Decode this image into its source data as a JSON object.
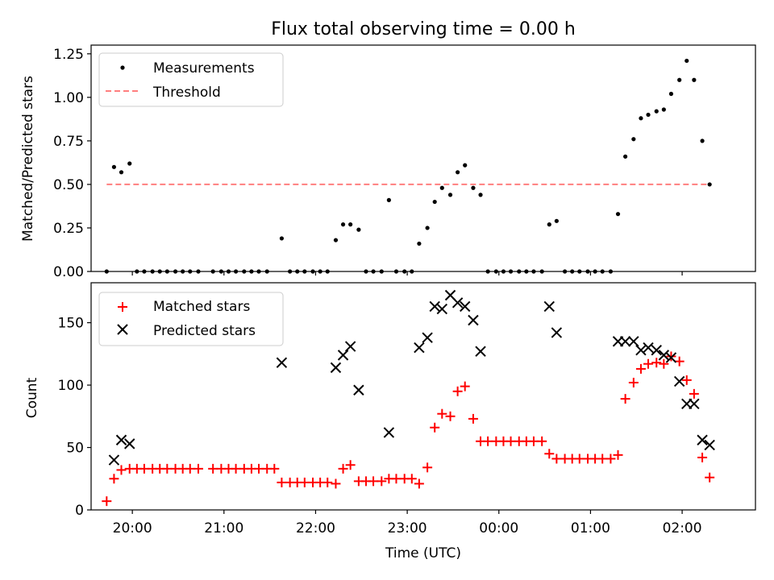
{
  "chart_data": [
    {
      "type": "scatter",
      "title": "Flux total observing time = 0.00 h",
      "xlabel": "",
      "ylabel": "Matched/Predicted stars",
      "ylim": [
        0,
        1.3
      ],
      "yticks": [
        0.0,
        0.25,
        0.5,
        0.75,
        1.0,
        1.25
      ],
      "ytick_labels": [
        "0.00",
        "0.25",
        "0.50",
        "0.75",
        "1.00",
        "1.25"
      ],
      "xlim_hours": [
        19.55,
        26.8
      ],
      "legend_position": "top-left",
      "series": [
        {
          "name": "Measurements",
          "color": "#000000",
          "marker": "dot",
          "points": [
            [
              19.72,
              0
            ],
            [
              19.8,
              0.6
            ],
            [
              19.88,
              0.57
            ],
            [
              19.97,
              0.62
            ],
            [
              20.05,
              0
            ],
            [
              20.13,
              0
            ],
            [
              20.22,
              0
            ],
            [
              20.3,
              0
            ],
            [
              20.38,
              0
            ],
            [
              20.47,
              0
            ],
            [
              20.55,
              0
            ],
            [
              20.63,
              0
            ],
            [
              20.72,
              0
            ],
            [
              20.88,
              0
            ],
            [
              20.97,
              0
            ],
            [
              21.05,
              0
            ],
            [
              21.13,
              0
            ],
            [
              21.22,
              0
            ],
            [
              21.3,
              0
            ],
            [
              21.38,
              0
            ],
            [
              21.47,
              0
            ],
            [
              21.63,
              0.19
            ],
            [
              21.72,
              0
            ],
            [
              21.8,
              0
            ],
            [
              21.88,
              0
            ],
            [
              21.97,
              0
            ],
            [
              22.05,
              0
            ],
            [
              22.13,
              0
            ],
            [
              22.22,
              0.18
            ],
            [
              22.3,
              0.27
            ],
            [
              22.38,
              0.27
            ],
            [
              22.47,
              0.24
            ],
            [
              22.55,
              0
            ],
            [
              22.63,
              0
            ],
            [
              22.72,
              0
            ],
            [
              22.8,
              0.41
            ],
            [
              22.88,
              0
            ],
            [
              22.97,
              0
            ],
            [
              23.05,
              0
            ],
            [
              23.13,
              0.16
            ],
            [
              23.22,
              0.25
            ],
            [
              23.3,
              0.4
            ],
            [
              23.38,
              0.48
            ],
            [
              23.47,
              0.44
            ],
            [
              23.55,
              0.57
            ],
            [
              23.63,
              0.61
            ],
            [
              23.72,
              0.48
            ],
            [
              23.8,
              0.44
            ],
            [
              23.88,
              0
            ],
            [
              23.97,
              0
            ],
            [
              24.05,
              0
            ],
            [
              24.13,
              0
            ],
            [
              24.22,
              0
            ],
            [
              24.3,
              0
            ],
            [
              24.38,
              0
            ],
            [
              24.47,
              0
            ],
            [
              24.55,
              0.27
            ],
            [
              24.63,
              0.29
            ],
            [
              24.72,
              0
            ],
            [
              24.8,
              0
            ],
            [
              24.88,
              0
            ],
            [
              24.97,
              0
            ],
            [
              25.05,
              0
            ],
            [
              25.13,
              0
            ],
            [
              25.22,
              0
            ],
            [
              25.3,
              0.33
            ],
            [
              25.38,
              0.66
            ],
            [
              25.47,
              0.76
            ],
            [
              25.55,
              0.88
            ],
            [
              25.63,
              0.9
            ],
            [
              25.72,
              0.92
            ],
            [
              25.8,
              0.93
            ],
            [
              25.88,
              1.02
            ],
            [
              25.97,
              1.1
            ],
            [
              26.05,
              1.21
            ],
            [
              26.13,
              1.1
            ],
            [
              26.22,
              0.75
            ],
            [
              26.3,
              0.5
            ]
          ]
        },
        {
          "name": "Threshold",
          "color": "#ff7f7f",
          "linestyle": "dashed",
          "x": [
            19.72,
            26.3
          ],
          "y": [
            0.5,
            0.5
          ]
        }
      ]
    },
    {
      "type": "scatter",
      "title": "",
      "xlabel": "Time (UTC)",
      "ylabel": "Count",
      "ylim": [
        0,
        182
      ],
      "yticks": [
        0,
        50,
        100,
        150
      ],
      "ytick_labels": [
        "0",
        "50",
        "100",
        "150"
      ],
      "xlim_hours": [
        19.55,
        26.8
      ],
      "xticks_hours": [
        20,
        21,
        22,
        23,
        24,
        25,
        26
      ],
      "xtick_labels": [
        "20:00",
        "21:00",
        "22:00",
        "23:00",
        "00:00",
        "01:00",
        "02:00"
      ],
      "legend_position": "top-left",
      "series": [
        {
          "name": "Matched stars",
          "color": "#ff0000",
          "marker": "plus",
          "points": [
            [
              19.72,
              7
            ],
            [
              19.8,
              25
            ],
            [
              19.88,
              32
            ],
            [
              19.97,
              33
            ],
            [
              20.05,
              33
            ],
            [
              20.13,
              33
            ],
            [
              20.22,
              33
            ],
            [
              20.3,
              33
            ],
            [
              20.38,
              33
            ],
            [
              20.47,
              33
            ],
            [
              20.55,
              33
            ],
            [
              20.63,
              33
            ],
            [
              20.72,
              33
            ],
            [
              20.88,
              33
            ],
            [
              20.97,
              33
            ],
            [
              21.05,
              33
            ],
            [
              21.13,
              33
            ],
            [
              21.22,
              33
            ],
            [
              21.3,
              33
            ],
            [
              21.38,
              33
            ],
            [
              21.47,
              33
            ],
            [
              21.55,
              33
            ],
            [
              21.63,
              22
            ],
            [
              21.72,
              22
            ],
            [
              21.8,
              22
            ],
            [
              21.88,
              22
            ],
            [
              21.97,
              22
            ],
            [
              22.05,
              22
            ],
            [
              22.13,
              22
            ],
            [
              22.22,
              21
            ],
            [
              22.3,
              33
            ],
            [
              22.38,
              36
            ],
            [
              22.47,
              23
            ],
            [
              22.55,
              23
            ],
            [
              22.63,
              23
            ],
            [
              22.72,
              23
            ],
            [
              22.8,
              25
            ],
            [
              22.88,
              25
            ],
            [
              22.97,
              25
            ],
            [
              23.05,
              25
            ],
            [
              23.13,
              21
            ],
            [
              23.22,
              34
            ],
            [
              23.3,
              66
            ],
            [
              23.38,
              77
            ],
            [
              23.47,
              75
            ],
            [
              23.55,
              95
            ],
            [
              23.63,
              99
            ],
            [
              23.72,
              73
            ],
            [
              23.8,
              55
            ],
            [
              23.88,
              55
            ],
            [
              23.97,
              55
            ],
            [
              24.05,
              55
            ],
            [
              24.13,
              55
            ],
            [
              24.22,
              55
            ],
            [
              24.3,
              55
            ],
            [
              24.38,
              55
            ],
            [
              24.47,
              55
            ],
            [
              24.55,
              45
            ],
            [
              24.63,
              41
            ],
            [
              24.72,
              41
            ],
            [
              24.8,
              41
            ],
            [
              24.88,
              41
            ],
            [
              24.97,
              41
            ],
            [
              25.05,
              41
            ],
            [
              25.13,
              41
            ],
            [
              25.22,
              41
            ],
            [
              25.3,
              44
            ],
            [
              25.38,
              89
            ],
            [
              25.47,
              102
            ],
            [
              25.55,
              113
            ],
            [
              25.63,
              117
            ],
            [
              25.72,
              118
            ],
            [
              25.8,
              117
            ],
            [
              25.88,
              123
            ],
            [
              25.97,
              119
            ],
            [
              26.05,
              104
            ],
            [
              26.13,
              93
            ],
            [
              26.22,
              42
            ],
            [
              26.3,
              26
            ]
          ]
        },
        {
          "name": "Predicted stars",
          "color": "#000000",
          "marker": "x",
          "points": [
            [
              19.8,
              40
            ],
            [
              19.88,
              56
            ],
            [
              19.97,
              53
            ],
            [
              21.63,
              118
            ],
            [
              22.22,
              114
            ],
            [
              22.3,
              124
            ],
            [
              22.38,
              131
            ],
            [
              22.47,
              96
            ],
            [
              22.8,
              62
            ],
            [
              23.13,
              130
            ],
            [
              23.22,
              138
            ],
            [
              23.3,
              163
            ],
            [
              23.38,
              161
            ],
            [
              23.47,
              172
            ],
            [
              23.55,
              166
            ],
            [
              23.63,
              163
            ],
            [
              23.72,
              152
            ],
            [
              23.8,
              127
            ],
            [
              24.55,
              163
            ],
            [
              24.63,
              142
            ],
            [
              25.3,
              135
            ],
            [
              25.38,
              135
            ],
            [
              25.47,
              135
            ],
            [
              25.55,
              128
            ],
            [
              25.63,
              130
            ],
            [
              25.72,
              128
            ],
            [
              25.8,
              124
            ],
            [
              25.88,
              122
            ],
            [
              25.97,
              103
            ],
            [
              26.05,
              85
            ],
            [
              26.13,
              85
            ],
            [
              26.22,
              56
            ],
            [
              26.3,
              52
            ]
          ]
        }
      ]
    }
  ]
}
